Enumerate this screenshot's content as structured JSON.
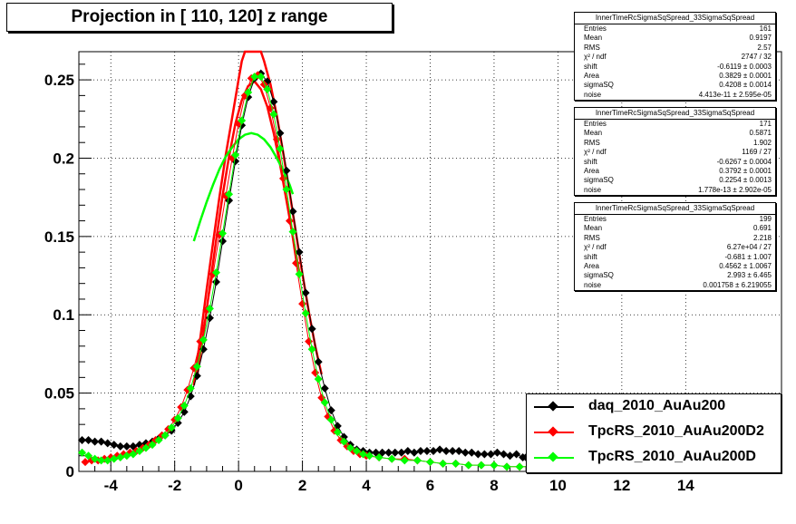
{
  "title": "Projection in [ 110, 120] z range",
  "stats_boxes": [
    {
      "header": "InnerTimeRcSigmaSqSpread_33SigmaSqSpread",
      "rows": [
        {
          "label": "Entries",
          "value": "161"
        },
        {
          "label": "Mean",
          "value": "0.9197"
        },
        {
          "label": "RMS",
          "value": "2.57"
        },
        {
          "label": "χ² / ndf",
          "value": "2747 / 32"
        },
        {
          "label": "shift",
          "value": "-0.6119 ± 0.0003"
        },
        {
          "label": "Area",
          "value": "0.3829 ± 0.0001"
        },
        {
          "label": "sigmaSQ",
          "value": "0.4208 ± 0.0014"
        },
        {
          "label": "noise",
          "value": "4.413e-11 ± 2.595e-05"
        }
      ]
    },
    {
      "header": "InnerTimeRcSigmaSqSpread_33SigmaSqSpread",
      "rows": [
        {
          "label": "Entries",
          "value": "171"
        },
        {
          "label": "Mean",
          "value": "0.5871"
        },
        {
          "label": "RMS",
          "value": "1.902"
        },
        {
          "label": "χ² / ndf",
          "value": "1169 / 27"
        },
        {
          "label": "shift",
          "value": "-0.6267 ± 0.0004"
        },
        {
          "label": "Area",
          "value": "0.3792 ± 0.0001"
        },
        {
          "label": "sigmaSQ",
          "value": "0.2254 ± 0.0013"
        },
        {
          "label": "noise",
          "value": "1.778e-13 ± 2.902e-05"
        }
      ]
    },
    {
      "header": "InnerTimeRcSigmaSqSpread_33SigmaSqSpread",
      "rows": [
        {
          "label": "Entries",
          "value": "199"
        },
        {
          "label": "Mean",
          "value": "0.691"
        },
        {
          "label": "RMS",
          "value": "2.218"
        },
        {
          "label": "χ² / ndf",
          "value": "6.27e+04 / 27"
        },
        {
          "label": "shift",
          "value": "-0.681 ± 1.007"
        },
        {
          "label": "Area",
          "value": "0.4562 ± 1.0067"
        },
        {
          "label": "sigmaSQ",
          "value": "2.993 ± 6.465"
        },
        {
          "label": "noise",
          "value": "0.001758 ± 6.219055"
        }
      ]
    }
  ],
  "legend": [
    {
      "label": "daq_2010_AuAu200",
      "color": "#000000"
    },
    {
      "label": "TpcRS_2010_AuAu200D2",
      "color": "#ff0000"
    },
    {
      "label": "TpcRS_2010_AuAu200D",
      "color": "#00ff00"
    }
  ],
  "chart_data": {
    "type": "scatter",
    "title": "Projection in [ 110, 120] z range",
    "xlabel": "",
    "ylabel": "",
    "xlim": [
      -5,
      17
    ],
    "ylim": [
      0,
      0.268
    ],
    "x_ticks": [
      -4,
      -2,
      0,
      2,
      4,
      6,
      8,
      10,
      12,
      14
    ],
    "y_ticks": [
      0,
      0.05,
      0.1,
      0.15,
      0.2,
      0.25
    ],
    "y_tick_labels": [
      "0",
      "0.05",
      "0.1",
      "0.15",
      "0.2",
      "0.25"
    ],
    "grid": true,
    "legend_position": "bottom-right",
    "series": [
      {
        "name": "daq_2010_AuAu200",
        "color": "#000000",
        "points": [
          [
            -4.9,
            0.02
          ],
          [
            -4.7,
            0.02
          ],
          [
            -4.5,
            0.019
          ],
          [
            -4.3,
            0.019
          ],
          [
            -4.1,
            0.018
          ],
          [
            -3.9,
            0.017
          ],
          [
            -3.7,
            0.016
          ],
          [
            -3.5,
            0.016
          ],
          [
            -3.3,
            0.016
          ],
          [
            -3.1,
            0.017
          ],
          [
            -2.9,
            0.018
          ],
          [
            -2.7,
            0.019
          ],
          [
            -2.5,
            0.021
          ],
          [
            -2.3,
            0.023
          ],
          [
            -2.1,
            0.026
          ],
          [
            -1.9,
            0.031
          ],
          [
            -1.7,
            0.038
          ],
          [
            -1.5,
            0.048
          ],
          [
            -1.3,
            0.061
          ],
          [
            -1.1,
            0.078
          ],
          [
            -0.9,
            0.098
          ],
          [
            -0.7,
            0.121
          ],
          [
            -0.5,
            0.147
          ],
          [
            -0.3,
            0.173
          ],
          [
            -0.1,
            0.198
          ],
          [
            0.1,
            0.221
          ],
          [
            0.3,
            0.239
          ],
          [
            0.5,
            0.251
          ],
          [
            0.7,
            0.254
          ],
          [
            0.9,
            0.249
          ],
          [
            1.1,
            0.236
          ],
          [
            1.3,
            0.216
          ],
          [
            1.5,
            0.192
          ],
          [
            1.7,
            0.166
          ],
          [
            1.9,
            0.14
          ],
          [
            2.1,
            0.114
          ],
          [
            2.3,
            0.091
          ],
          [
            2.5,
            0.07
          ],
          [
            2.7,
            0.053
          ],
          [
            2.9,
            0.039
          ],
          [
            3.1,
            0.029
          ],
          [
            3.3,
            0.022
          ],
          [
            3.5,
            0.017
          ],
          [
            3.7,
            0.014
          ],
          [
            3.9,
            0.013
          ],
          [
            4.1,
            0.012
          ],
          [
            4.3,
            0.012
          ],
          [
            4.5,
            0.012
          ],
          [
            4.7,
            0.012
          ],
          [
            4.9,
            0.012
          ],
          [
            5.1,
            0.012
          ],
          [
            5.3,
            0.013
          ],
          [
            5.5,
            0.012
          ],
          [
            5.7,
            0.013
          ],
          [
            5.9,
            0.013
          ],
          [
            6.1,
            0.013
          ],
          [
            6.3,
            0.014
          ],
          [
            6.5,
            0.013
          ],
          [
            6.7,
            0.013
          ],
          [
            6.9,
            0.013
          ],
          [
            7.1,
            0.012
          ],
          [
            7.3,
            0.012
          ],
          [
            7.5,
            0.011
          ],
          [
            7.7,
            0.011
          ],
          [
            7.9,
            0.011
          ],
          [
            8.1,
            0.012
          ],
          [
            8.3,
            0.011
          ],
          [
            8.5,
            0.01
          ],
          [
            8.7,
            0.011
          ],
          [
            8.9,
            0.009
          ],
          [
            9.0,
            0.009
          ],
          [
            9.2,
            0.008
          ]
        ]
      },
      {
        "name": "TpcRS_2010_AuAu200D2",
        "color": "#ff0000",
        "points": [
          [
            -4.8,
            0.006
          ],
          [
            -4.6,
            0.007
          ],
          [
            -4.4,
            0.007
          ],
          [
            -4.2,
            0.008
          ],
          [
            -4.0,
            0.009
          ],
          [
            -3.8,
            0.01
          ],
          [
            -3.6,
            0.011
          ],
          [
            -3.4,
            0.012
          ],
          [
            -3.2,
            0.013
          ],
          [
            -3.0,
            0.015
          ],
          [
            -2.8,
            0.017
          ],
          [
            -2.6,
            0.02
          ],
          [
            -2.4,
            0.023
          ],
          [
            -2.2,
            0.027
          ],
          [
            -2.0,
            0.033
          ],
          [
            -1.8,
            0.041
          ],
          [
            -1.6,
            0.052
          ],
          [
            -1.4,
            0.066
          ],
          [
            -1.2,
            0.083
          ],
          [
            -1.0,
            0.103
          ],
          [
            -0.8,
            0.126
          ],
          [
            -0.6,
            0.151
          ],
          [
            -0.4,
            0.176
          ],
          [
            -0.2,
            0.2
          ],
          [
            0.0,
            0.222
          ],
          [
            0.2,
            0.24
          ],
          [
            0.4,
            0.251
          ],
          [
            0.6,
            0.253
          ],
          [
            0.8,
            0.247
          ],
          [
            1.0,
            0.232
          ],
          [
            1.2,
            0.212
          ],
          [
            1.4,
            0.187
          ],
          [
            1.6,
            0.16
          ],
          [
            1.8,
            0.133
          ],
          [
            2.0,
            0.107
          ],
          [
            2.2,
            0.083
          ],
          [
            2.4,
            0.063
          ],
          [
            2.6,
            0.047
          ],
          [
            2.8,
            0.035
          ],
          [
            3.0,
            0.026
          ],
          [
            3.2,
            0.02
          ],
          [
            3.4,
            0.016
          ],
          [
            3.6,
            0.013
          ],
          [
            3.8,
            0.011
          ],
          [
            4.0,
            0.01
          ],
          [
            4.4,
            0.009
          ],
          [
            4.8,
            0.008
          ],
          [
            5.2,
            0.008
          ],
          [
            5.6,
            0.007
          ],
          [
            6.0,
            0.006
          ],
          [
            6.4,
            0.005
          ],
          [
            6.8,
            0.005
          ],
          [
            7.2,
            0.004
          ],
          [
            7.6,
            0.004
          ],
          [
            8.0,
            0.004
          ],
          [
            8.4,
            0.003
          ],
          [
            8.8,
            0.003
          ],
          [
            9.2,
            0.003
          ],
          [
            9.6,
            0.003
          ],
          [
            10.0,
            0.002
          ],
          [
            10.4,
            0.002
          ],
          [
            10.8,
            0.002
          ]
        ]
      },
      {
        "name": "TpcRS_2010_AuAu200D",
        "color": "#00ff00",
        "points": [
          [
            -4.9,
            0.012
          ],
          [
            -4.7,
            0.01
          ],
          [
            -4.5,
            0.008
          ],
          [
            -4.3,
            0.007
          ],
          [
            -4.1,
            0.007
          ],
          [
            -3.9,
            0.008
          ],
          [
            -3.7,
            0.009
          ],
          [
            -3.5,
            0.01
          ],
          [
            -3.3,
            0.011
          ],
          [
            -3.1,
            0.013
          ],
          [
            -2.9,
            0.015
          ],
          [
            -2.7,
            0.017
          ],
          [
            -2.5,
            0.02
          ],
          [
            -2.3,
            0.023
          ],
          [
            -2.1,
            0.028
          ],
          [
            -1.9,
            0.034
          ],
          [
            -1.7,
            0.042
          ],
          [
            -1.5,
            0.053
          ],
          [
            -1.3,
            0.067
          ],
          [
            -1.1,
            0.084
          ],
          [
            -0.9,
            0.104
          ],
          [
            -0.7,
            0.127
          ],
          [
            -0.5,
            0.152
          ],
          [
            -0.3,
            0.177
          ],
          [
            -0.1,
            0.202
          ],
          [
            0.1,
            0.224
          ],
          [
            0.3,
            0.242
          ],
          [
            0.5,
            0.252
          ],
          [
            0.7,
            0.252
          ],
          [
            0.9,
            0.244
          ],
          [
            1.1,
            0.228
          ],
          [
            1.3,
            0.206
          ],
          [
            1.5,
            0.18
          ],
          [
            1.7,
            0.153
          ],
          [
            1.9,
            0.126
          ],
          [
            2.1,
            0.101
          ],
          [
            2.3,
            0.078
          ],
          [
            2.5,
            0.059
          ],
          [
            2.7,
            0.044
          ],
          [
            2.9,
            0.033
          ],
          [
            3.1,
            0.025
          ],
          [
            3.3,
            0.019
          ],
          [
            3.5,
            0.015
          ],
          [
            3.7,
            0.013
          ],
          [
            3.9,
            0.011
          ],
          [
            4.1,
            0.01
          ],
          [
            4.4,
            0.009
          ],
          [
            4.8,
            0.008
          ],
          [
            5.2,
            0.007
          ],
          [
            5.6,
            0.007
          ],
          [
            6.0,
            0.006
          ],
          [
            6.4,
            0.005
          ],
          [
            6.8,
            0.005
          ],
          [
            7.2,
            0.004
          ],
          [
            7.6,
            0.004
          ],
          [
            8.0,
            0.004
          ],
          [
            8.4,
            0.003
          ],
          [
            8.8,
            0.003
          ],
          [
            9.2,
            0.003
          ],
          [
            9.6,
            0.003
          ],
          [
            10.0,
            0.002
          ],
          [
            10.4,
            0.002
          ],
          [
            10.8,
            0.002
          ]
        ]
      }
    ],
    "fits": [
      {
        "color": "#ff0000",
        "points": [
          [
            -1.4,
            0.055
          ],
          [
            -1.2,
            0.085
          ],
          [
            -1.0,
            0.116
          ],
          [
            -0.8,
            0.146
          ],
          [
            -0.6,
            0.175
          ],
          [
            -0.4,
            0.202
          ],
          [
            -0.2,
            0.226
          ],
          [
            0.0,
            0.25
          ],
          [
            0.1,
            0.262
          ],
          [
            0.2,
            0.272
          ],
          [
            0.6,
            0.272
          ],
          [
            0.7,
            0.268
          ],
          [
            0.8,
            0.262
          ],
          [
            1.0,
            0.247
          ],
          [
            1.2,
            0.227
          ],
          [
            1.4,
            0.203
          ],
          [
            1.6,
            0.178
          ],
          [
            1.8,
            0.152
          ],
          [
            2.0,
            0.126
          ],
          [
            2.2,
            0.102
          ],
          [
            2.4,
            0.08
          ],
          [
            2.6,
            0.062
          ]
        ]
      },
      {
        "color": "#ff0000",
        "points": [
          [
            -1.3,
            0.06
          ],
          [
            -1.1,
            0.088
          ],
          [
            -0.9,
            0.118
          ],
          [
            -0.7,
            0.148
          ],
          [
            -0.5,
            0.176
          ],
          [
            -0.3,
            0.201
          ],
          [
            -0.1,
            0.222
          ],
          [
            0.1,
            0.237
          ],
          [
            0.3,
            0.246
          ],
          [
            0.5,
            0.249
          ],
          [
            0.7,
            0.244
          ],
          [
            0.9,
            0.233
          ],
          [
            1.1,
            0.216
          ],
          [
            1.3,
            0.196
          ],
          [
            1.5,
            0.173
          ],
          [
            1.7,
            0.15
          ],
          [
            1.9,
            0.127
          ]
        ]
      },
      {
        "color": "#00ff00",
        "points": [
          [
            -1.4,
            0.147
          ],
          [
            -1.2,
            0.16
          ],
          [
            -1.0,
            0.172
          ],
          [
            -0.8,
            0.183
          ],
          [
            -0.6,
            0.193
          ],
          [
            -0.4,
            0.201
          ],
          [
            -0.2,
            0.207
          ],
          [
            0.0,
            0.212
          ],
          [
            0.2,
            0.215
          ],
          [
            0.4,
            0.216
          ],
          [
            0.6,
            0.215
          ],
          [
            0.8,
            0.212
          ],
          [
            1.0,
            0.207
          ],
          [
            1.2,
            0.2
          ],
          [
            1.4,
            0.192
          ],
          [
            1.6,
            0.183
          ],
          [
            1.7,
            0.177
          ]
        ]
      }
    ]
  }
}
